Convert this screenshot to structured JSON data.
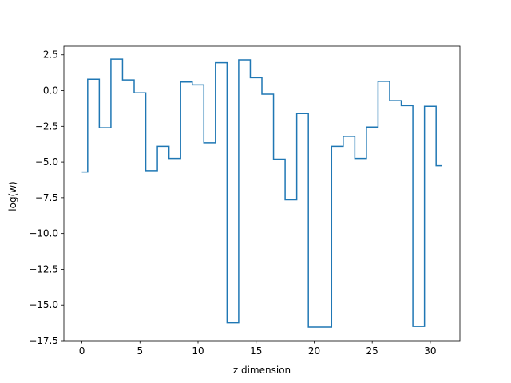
{
  "chart_data": {
    "type": "line",
    "style": "step-mid",
    "xlabel": "z dimension",
    "ylabel": "log(w)",
    "xlim": [
      -1.55,
      32.55
    ],
    "ylim": [
      -17.5,
      3.1
    ],
    "xticks": [
      0,
      5,
      10,
      15,
      20,
      25,
      30
    ],
    "yticks": [
      2.5,
      0.0,
      -2.5,
      -5.0,
      -7.5,
      -10.0,
      -12.5,
      -15.0,
      -17.5
    ],
    "xtick_labels": [
      "0",
      "5",
      "10",
      "15",
      "20",
      "25",
      "30"
    ],
    "ytick_labels": [
      "2.5",
      "0.0",
      "−2.5",
      "−5.0",
      "−7.5",
      "−10.0",
      "−12.5",
      "−15.0",
      "−17.5"
    ],
    "grid": false,
    "series": [
      {
        "color": "#1f77b4",
        "x": [
          0,
          1,
          2,
          3,
          4,
          5,
          6,
          7,
          8,
          9,
          10,
          11,
          12,
          13,
          14,
          15,
          16,
          17,
          18,
          19,
          20,
          21,
          22,
          23,
          24,
          25,
          26,
          27,
          28,
          29,
          30,
          31
        ],
        "y": [
          -5.7,
          0.8,
          -2.6,
          2.2,
          0.75,
          -0.15,
          -5.6,
          -3.9,
          -4.75,
          0.6,
          0.4,
          -3.65,
          1.95,
          -16.25,
          2.15,
          0.9,
          -0.25,
          -4.8,
          -7.65,
          -1.6,
          -16.55,
          -16.55,
          -3.9,
          -3.2,
          -4.75,
          -2.55,
          0.65,
          -0.7,
          -1.05,
          -16.5,
          -1.1,
          -5.25
        ]
      }
    ]
  }
}
